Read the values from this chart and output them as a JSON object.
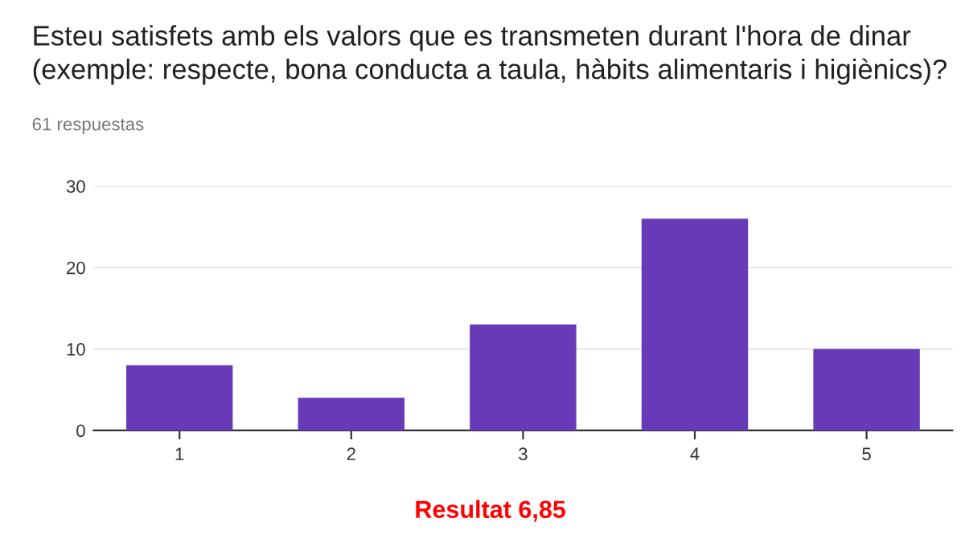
{
  "chart_data": {
    "type": "bar",
    "title": "Esteu satisfets amb els valors que es transmeten durant l'hora de dinar\n(exemple: respecte, bona conducta a taula, hàbits alimentaris i higiènics)?",
    "subtitle": "61 respuestas",
    "categories": [
      "1",
      "2",
      "3",
      "4",
      "5"
    ],
    "values": [
      8,
      4,
      13,
      26,
      10
    ],
    "color": "#673ab7",
    "ylim": [
      0,
      30
    ],
    "yticks": [
      0,
      10,
      20,
      30
    ],
    "grid": "y",
    "annotations": [
      "Resultat 6,85"
    ]
  }
}
